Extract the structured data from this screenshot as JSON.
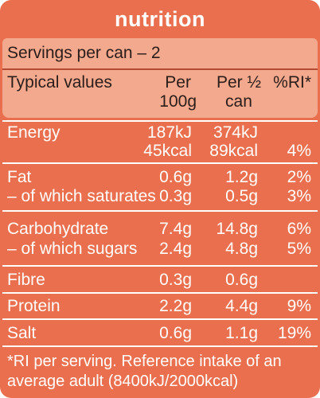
{
  "title": "nutrition",
  "servings": "Servings per can – 2",
  "header": {
    "label": "Typical values",
    "per100": [
      "Per",
      "100g"
    ],
    "perhalf": [
      "Per ½",
      "can"
    ],
    "ri": "%RI*"
  },
  "rows": {
    "energy": {
      "label": "Energy",
      "per100_kj": "187kJ",
      "per100_kcal": "45kcal",
      "perhalf_kj": "374kJ",
      "perhalf_kcal": "89kcal",
      "ri": "4%"
    },
    "fat": {
      "label": "Fat",
      "per100": "0.6g",
      "perhalf": "1.2g",
      "ri": "2%"
    },
    "saturates": {
      "label": "– of which saturates",
      "per100": "0.3g",
      "perhalf": "0.5g",
      "ri": "3%"
    },
    "carbohydrate": {
      "label": "Carbohydrate",
      "per100": "7.4g",
      "perhalf": "14.8g",
      "ri": "6%"
    },
    "sugars": {
      "label": "– of which sugars",
      "per100": "2.4g",
      "perhalf": "4.8g",
      "ri": "5%"
    },
    "fibre": {
      "label": "Fibre",
      "per100": "0.3g",
      "perhalf": "0.6g",
      "ri": ""
    },
    "protein": {
      "label": "Protein",
      "per100": "2.2g",
      "perhalf": "4.4g",
      "ri": "9%"
    },
    "salt": {
      "label": "Salt",
      "per100": "0.6g",
      "perhalf": "1.1g",
      "ri": "19%"
    }
  },
  "footnote": {
    "line1": "*RI per serving. Reference intake of an",
    "line2": "average adult (8400kJ/2000kcal)"
  },
  "colors": {
    "panel": "#e96f4e",
    "header": "#f2a98d",
    "text_dark": "#2b1d1a",
    "text_light": "#ffffff"
  }
}
